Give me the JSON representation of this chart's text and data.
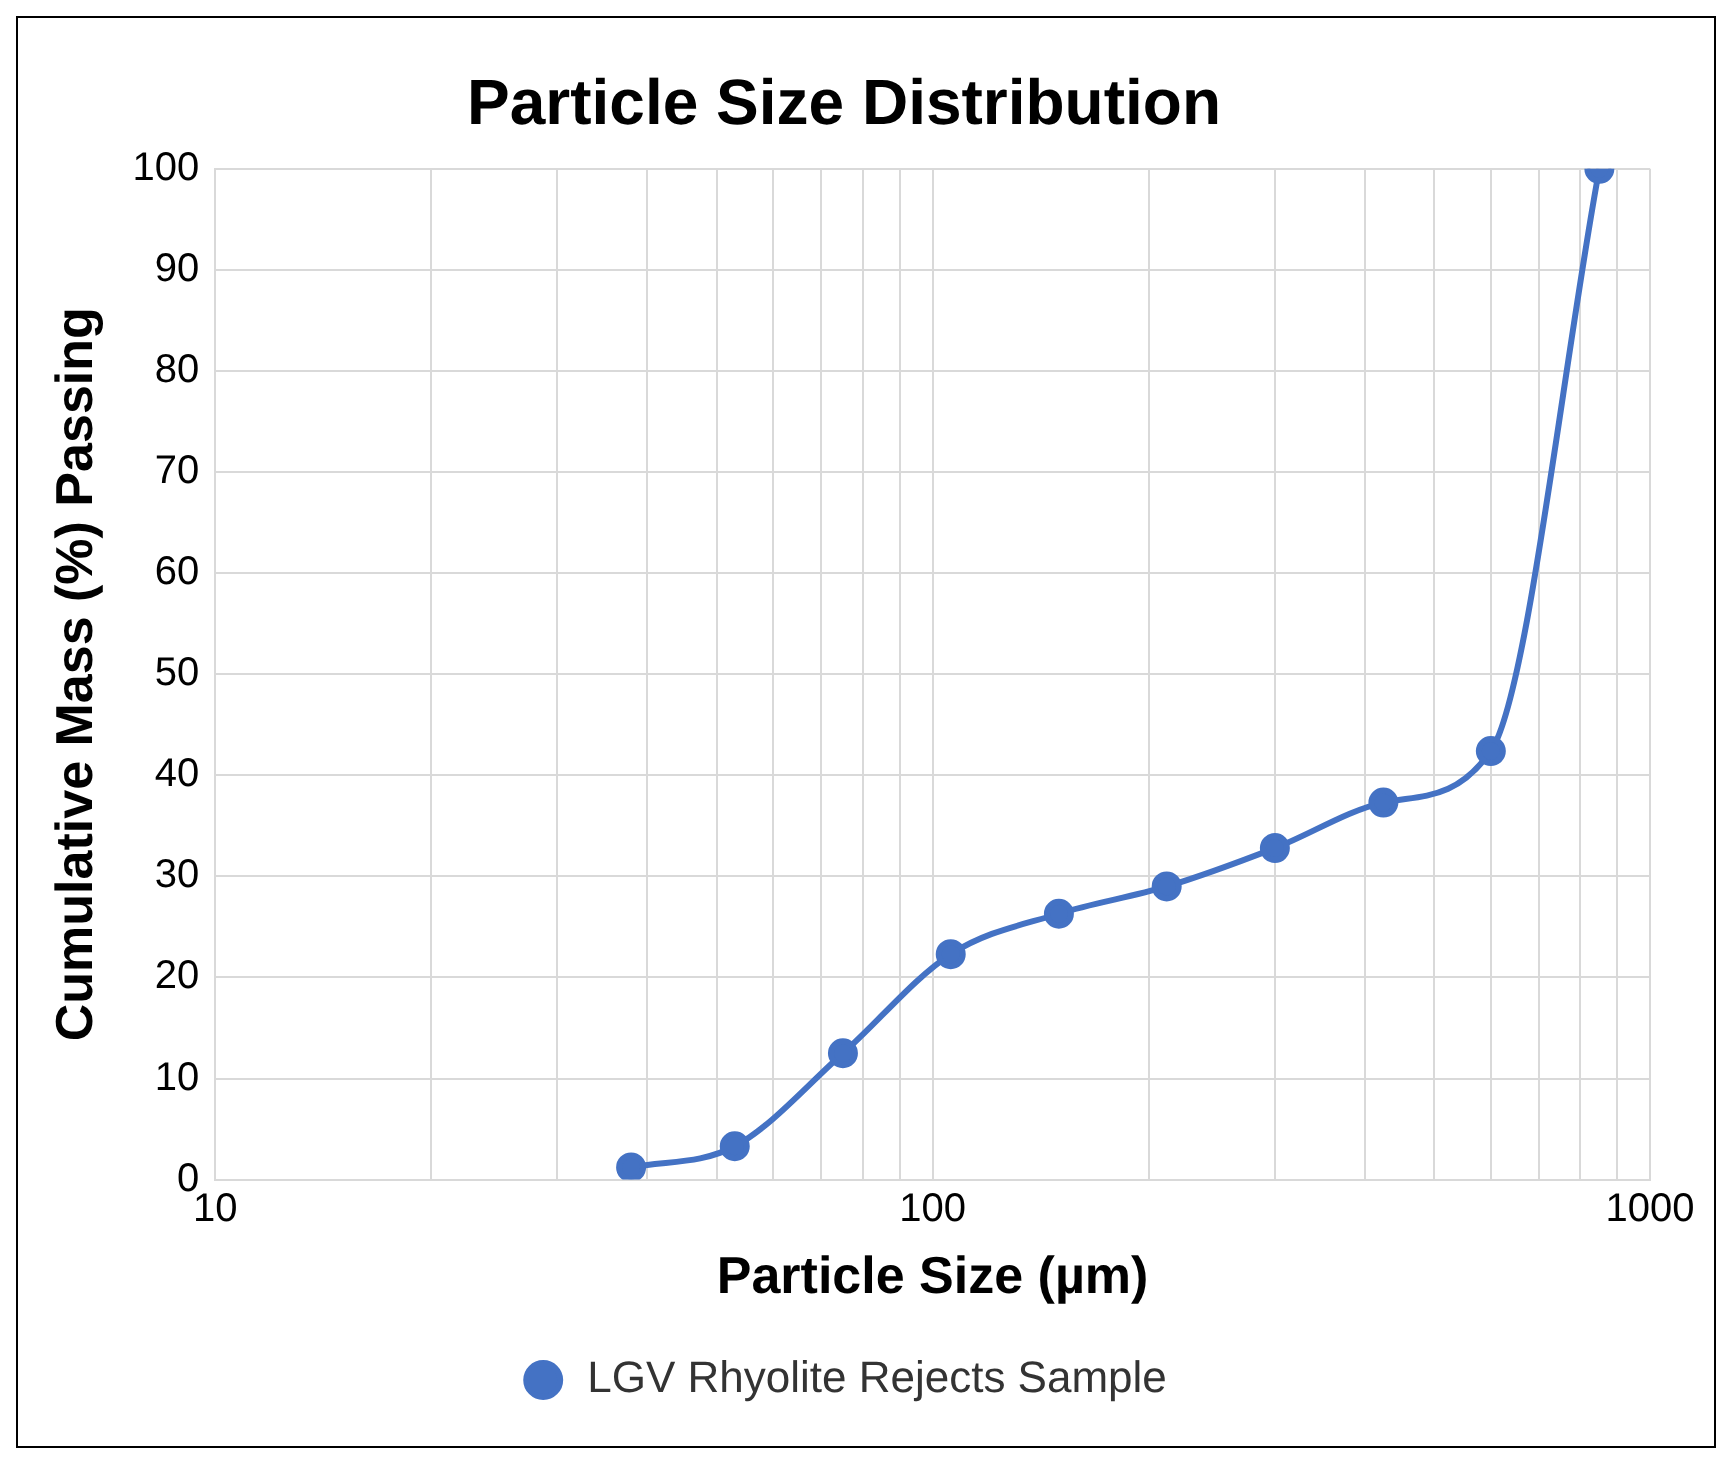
{
  "chart_data": {
    "type": "line",
    "title": "Particle Size Distribution",
    "xlabel": "Particle Size (µm)",
    "ylabel": "Cumulative Mass (%) Passing",
    "log": "x",
    "xlim": [
      10,
      1000
    ],
    "xticks": [
      10,
      {
        "value": 20,
        "label": null
      },
      {
        "value": 30,
        "label": null
      },
      {
        "value": 40,
        "label": null
      },
      {
        "value": 50,
        "label": null
      },
      {
        "value": 60,
        "label": null
      },
      {
        "value": 70,
        "label": null
      },
      {
        "value": 80,
        "label": null
      },
      {
        "value": 90,
        "label": null
      },
      100,
      {
        "value": 200,
        "label": null
      },
      {
        "value": 300,
        "label": null
      },
      {
        "value": 400,
        "label": null
      },
      {
        "value": 500,
        "label": null
      },
      {
        "value": 600,
        "label": null
      },
      {
        "value": 700,
        "label": null
      },
      {
        "value": 800,
        "label": null
      },
      {
        "value": 900,
        "label": null
      },
      1000
    ],
    "ylim": [
      0,
      100
    ],
    "yticks": [
      0,
      10,
      20,
      30,
      40,
      50,
      60,
      70,
      80,
      90,
      100
    ],
    "grid": true,
    "legend": "bottom",
    "marker": "circle",
    "line_style": "solid",
    "series": [
      {
        "name": "LGV Rhyolite Rejects Sample",
        "color": "#4472c4",
        "x": [
          38,
          53,
          75,
          106,
          150,
          212,
          300,
          425,
          600,
          850
        ],
        "values": [
          1.2,
          3.3,
          12.5,
          22.3,
          26.3,
          29.0,
          32.8,
          37.3,
          42.4,
          100
        ]
      }
    ]
  }
}
